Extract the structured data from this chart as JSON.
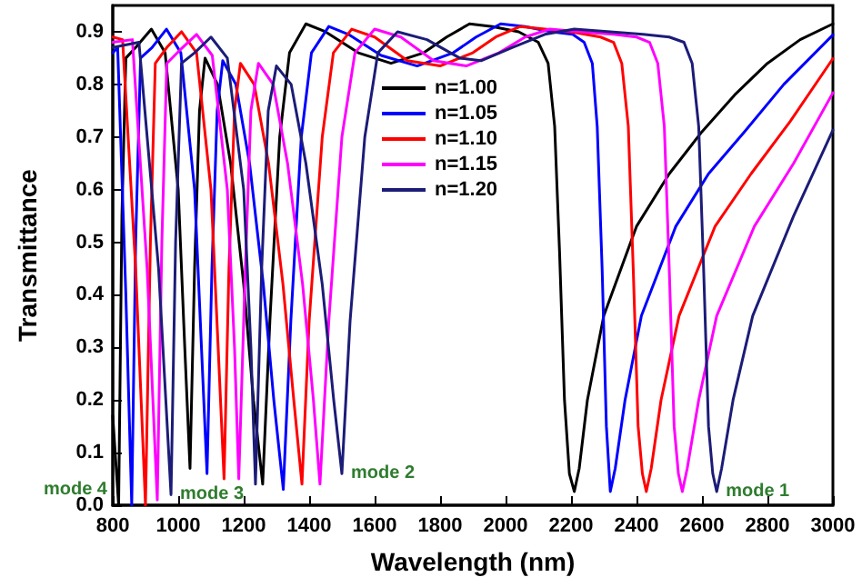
{
  "chart_data": {
    "type": "line",
    "xlabel": "Wavelength (nm)",
    "ylabel": "Transmittance",
    "xlim": [
      800,
      3000
    ],
    "xticks": [
      800,
      1000,
      1200,
      1400,
      1600,
      1800,
      2000,
      2200,
      2400,
      2600,
      2800,
      3000
    ],
    "ylim": [
      0,
      0.95
    ],
    "yticks": [
      {
        "value": 0,
        "label": "0.0"
      },
      0.1,
      0.2,
      0.3,
      0.4,
      0.5,
      0.6,
      0.7,
      0.8,
      0.9
    ],
    "grid": false,
    "legend": "top",
    "marker": "none",
    "line_style": "solid",
    "annotations": [
      {
        "text": "mode 4",
        "x": 800,
        "y": 0.03
      },
      {
        "text": "mode 3",
        "x": 978,
        "y": 0.02
      },
      {
        "text": "mode 2",
        "x": 1500,
        "y": 0.06
      },
      {
        "text": "mode 1",
        "x": 2645,
        "y": 0.026
      }
    ],
    "series": [
      {
        "name": "n=1.00",
        "color": "#000000",
        "x": [
          800,
          818,
          828,
          840,
          870,
          918,
          960,
          1000,
          1020,
          1036,
          1050,
          1065,
          1082,
          1120,
          1160,
          1200,
          1230,
          1258,
          1280,
          1310,
          1340,
          1390,
          1450,
          1550,
          1650,
          1750,
          1820,
          1890,
          1960,
          2040,
          2100,
          2130,
          2150,
          2165,
          2180,
          2195,
          2210,
          2225,
          2250,
          2300,
          2400,
          2500,
          2600,
          2700,
          2800,
          2900,
          3000
        ],
        "values": [
          0.17,
          0.0,
          0.55,
          0.85,
          0.87,
          0.905,
          0.86,
          0.6,
          0.3,
          0.07,
          0.45,
          0.75,
          0.85,
          0.8,
          0.65,
          0.42,
          0.2,
          0.04,
          0.35,
          0.7,
          0.86,
          0.915,
          0.9,
          0.86,
          0.84,
          0.86,
          0.89,
          0.915,
          0.91,
          0.9,
          0.88,
          0.84,
          0.72,
          0.48,
          0.2,
          0.06,
          0.026,
          0.07,
          0.2,
          0.36,
          0.53,
          0.63,
          0.71,
          0.78,
          0.84,
          0.885,
          0.915
        ]
      },
      {
        "name": "n=1.05",
        "color": "#0000ff",
        "x": [
          800,
          815,
          840,
          858,
          870,
          885,
          920,
          964,
          1008,
          1050,
          1071,
          1088,
          1103,
          1119,
          1136,
          1176,
          1218,
          1260,
          1292,
          1321,
          1344,
          1376,
          1407,
          1460,
          1520,
          1620,
          1730,
          1840,
          1910,
          1985,
          2060,
          2140,
          2205,
          2240,
          2265,
          2280,
          2295,
          2308,
          2320,
          2335,
          2365,
          2415,
          2520,
          2620,
          2730,
          2850,
          3000
        ],
        "values": [
          0.86,
          0.87,
          0.4,
          0.0,
          0.5,
          0.85,
          0.87,
          0.905,
          0.86,
          0.6,
          0.3,
          0.06,
          0.45,
          0.75,
          0.845,
          0.8,
          0.65,
          0.42,
          0.2,
          0.03,
          0.35,
          0.7,
          0.86,
          0.91,
          0.895,
          0.855,
          0.835,
          0.86,
          0.89,
          0.915,
          0.91,
          0.9,
          0.895,
          0.88,
          0.84,
          0.72,
          0.45,
          0.15,
          0.026,
          0.07,
          0.2,
          0.36,
          0.53,
          0.63,
          0.71,
          0.8,
          0.894
        ]
      },
      {
        "name": "n=1.10",
        "color": "#ff0000",
        "x": [
          800,
          830,
          870,
          900,
          915,
          930,
          965,
          1010,
          1056,
          1100,
          1122,
          1140,
          1155,
          1172,
          1190,
          1232,
          1276,
          1320,
          1353,
          1378,
          1400,
          1440,
          1474,
          1530,
          1600,
          1700,
          1800,
          1900,
          1970,
          2045,
          2120,
          2200,
          2290,
          2330,
          2355,
          2375,
          2390,
          2405,
          2418,
          2430,
          2445,
          2475,
          2530,
          2640,
          2750,
          2870,
          3000
        ],
        "values": [
          0.89,
          0.885,
          0.45,
          0.0,
          0.5,
          0.84,
          0.87,
          0.9,
          0.86,
          0.6,
          0.3,
          0.05,
          0.45,
          0.75,
          0.84,
          0.8,
          0.65,
          0.42,
          0.2,
          0.04,
          0.35,
          0.7,
          0.86,
          0.905,
          0.89,
          0.845,
          0.835,
          0.86,
          0.89,
          0.91,
          0.905,
          0.9,
          0.89,
          0.88,
          0.84,
          0.72,
          0.45,
          0.15,
          0.06,
          0.026,
          0.07,
          0.2,
          0.36,
          0.53,
          0.63,
          0.73,
          0.849
        ]
      },
      {
        "name": "n=1.15",
        "color": "#ff00ff",
        "x": [
          800,
          860,
          905,
          936,
          950,
          965,
          1005,
          1056,
          1104,
          1150,
          1172,
          1185,
          1205,
          1222,
          1245,
          1290,
          1334,
          1380,
          1413,
          1433,
          1460,
          1500,
          1540,
          1600,
          1680,
          1780,
          1880,
          1980,
          2060,
          2135,
          2230,
          2330,
          2400,
          2440,
          2465,
          2485,
          2500,
          2515,
          2528,
          2540,
          2555,
          2590,
          2645,
          2760,
          2880,
          3000
        ],
        "values": [
          0.88,
          0.885,
          0.45,
          0.01,
          0.5,
          0.84,
          0.865,
          0.895,
          0.855,
          0.6,
          0.3,
          0.05,
          0.45,
          0.75,
          0.84,
          0.8,
          0.65,
          0.42,
          0.2,
          0.04,
          0.35,
          0.7,
          0.86,
          0.905,
          0.89,
          0.845,
          0.835,
          0.86,
          0.89,
          0.905,
          0.9,
          0.895,
          0.89,
          0.88,
          0.84,
          0.72,
          0.45,
          0.15,
          0.06,
          0.026,
          0.07,
          0.2,
          0.36,
          0.53,
          0.65,
          0.784
        ]
      },
      {
        "name": "n=1.20",
        "color": "#1c1c78",
        "x": [
          800,
          880,
          940,
          978,
          992,
          1010,
          1050,
          1100,
          1150,
          1200,
          1222,
          1236,
          1255,
          1275,
          1300,
          1345,
          1390,
          1440,
          1475,
          1500,
          1525,
          1570,
          1610,
          1670,
          1760,
          1860,
          1925,
          2020,
          2120,
          2210,
          2320,
          2420,
          2500,
          2545,
          2570,
          2590,
          2605,
          2620,
          2633,
          2645,
          2660,
          2695,
          2755,
          2880,
          3000
        ],
        "values": [
          0.87,
          0.88,
          0.45,
          0.02,
          0.5,
          0.84,
          0.86,
          0.89,
          0.85,
          0.6,
          0.3,
          0.04,
          0.45,
          0.75,
          0.835,
          0.8,
          0.65,
          0.42,
          0.2,
          0.06,
          0.35,
          0.7,
          0.86,
          0.9,
          0.885,
          0.85,
          0.845,
          0.87,
          0.895,
          0.905,
          0.9,
          0.895,
          0.89,
          0.88,
          0.84,
          0.72,
          0.45,
          0.15,
          0.06,
          0.026,
          0.07,
          0.2,
          0.36,
          0.55,
          0.713
        ]
      }
    ]
  }
}
